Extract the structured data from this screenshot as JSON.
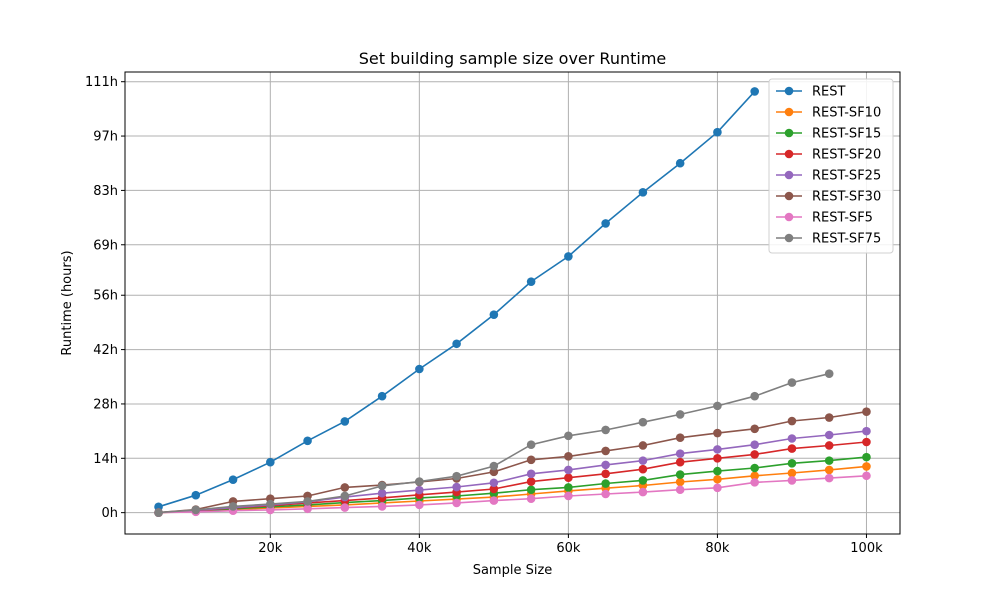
{
  "chart_data": {
    "type": "line",
    "title": "Set building sample size over Runtime",
    "xlabel": "Sample Size",
    "ylabel": "Runtime (hours)",
    "xlim": [
      500,
      104500
    ],
    "ylim": [
      -5.5,
      113.5
    ],
    "x_ticks": [
      {
        "value": 20000,
        "label": "20k"
      },
      {
        "value": 40000,
        "label": "40k"
      },
      {
        "value": 60000,
        "label": "60k"
      },
      {
        "value": 80000,
        "label": "80k"
      },
      {
        "value": 100000,
        "label": "100k"
      }
    ],
    "y_ticks": [
      {
        "value": 0,
        "label": "0h"
      },
      {
        "value": 14,
        "label": "14h"
      },
      {
        "value": 28,
        "label": "28h"
      },
      {
        "value": 42,
        "label": "42h"
      },
      {
        "value": 56,
        "label": "56h"
      },
      {
        "value": 69,
        "label": "69h"
      },
      {
        "value": 83,
        "label": "83h"
      },
      {
        "value": 97,
        "label": "97h"
      },
      {
        "value": 111,
        "label": "111h"
      }
    ],
    "grid": true,
    "legend_position": "top-right",
    "series": [
      {
        "name": "REST",
        "color": "#1f77b4",
        "x": [
          5000,
          10000,
          15000,
          20000,
          25000,
          30000,
          35000,
          40000,
          45000,
          50000,
          55000,
          60000,
          65000,
          70000,
          75000,
          80000,
          85000
        ],
        "y": [
          1.5,
          4.5,
          8.5,
          13,
          18.5,
          23.5,
          30,
          37,
          43.5,
          51,
          59.5,
          66,
          74.5,
          82.5,
          90,
          98,
          108.5
        ]
      },
      {
        "name": "REST-SF10",
        "color": "#ff7f0e",
        "x": [
          5000,
          10000,
          15000,
          20000,
          25000,
          30000,
          35000,
          40000,
          45000,
          50000,
          55000,
          60000,
          65000,
          70000,
          75000,
          80000,
          85000,
          90000,
          95000,
          100000
        ],
        "y": [
          0,
          0.3,
          0.8,
          1.2,
          1.6,
          2,
          2.5,
          3,
          3.5,
          4,
          4.8,
          5.6,
          6.3,
          7,
          7.9,
          8.6,
          9.5,
          10.2,
          11,
          11.9
        ]
      },
      {
        "name": "REST-SF15",
        "color": "#2ca02c",
        "x": [
          5000,
          10000,
          15000,
          20000,
          25000,
          30000,
          35000,
          40000,
          45000,
          50000,
          55000,
          60000,
          65000,
          70000,
          75000,
          80000,
          85000,
          90000,
          95000,
          100000
        ],
        "y": [
          0,
          0.4,
          1,
          1.5,
          2,
          2.6,
          3.1,
          3.8,
          4.3,
          5,
          5.9,
          6.5,
          7.5,
          8.3,
          9.8,
          10.7,
          11.5,
          12.7,
          13.4,
          14.3
        ]
      },
      {
        "name": "REST-SF20",
        "color": "#d62728",
        "x": [
          5000,
          10000,
          15000,
          20000,
          25000,
          30000,
          35000,
          40000,
          45000,
          50000,
          55000,
          60000,
          65000,
          70000,
          75000,
          80000,
          85000,
          90000,
          95000,
          100000
        ],
        "y": [
          0,
          0.5,
          1.2,
          1.8,
          2.5,
          3.1,
          3.8,
          4.6,
          5.3,
          6.1,
          8,
          9,
          10,
          11.2,
          13,
          14,
          15,
          16.5,
          17.3,
          18.2
        ]
      },
      {
        "name": "REST-SF25",
        "color": "#9467bd",
        "x": [
          5000,
          10000,
          15000,
          20000,
          25000,
          30000,
          35000,
          40000,
          45000,
          50000,
          55000,
          60000,
          65000,
          70000,
          75000,
          80000,
          85000,
          90000,
          95000,
          100000
        ],
        "y": [
          0,
          0.6,
          1.3,
          2,
          2.8,
          4,
          5,
          5.8,
          6.6,
          7.7,
          10,
          11,
          12.3,
          13.4,
          15.2,
          16.3,
          17.5,
          19.1,
          20,
          21
        ]
      },
      {
        "name": "REST-SF30",
        "color": "#8c564b",
        "x": [
          5000,
          10000,
          15000,
          20000,
          25000,
          30000,
          35000,
          40000,
          45000,
          50000,
          55000,
          60000,
          65000,
          70000,
          75000,
          80000,
          85000,
          90000,
          95000,
          100000
        ],
        "y": [
          0,
          0.8,
          2.9,
          3.6,
          4.3,
          6.5,
          7.1,
          7.9,
          8.8,
          10.5,
          13.6,
          14.5,
          15.9,
          17.3,
          19.3,
          20.5,
          21.6,
          23.6,
          24.5,
          26
        ]
      },
      {
        "name": "REST-SF5",
        "color": "#e377c2",
        "x": [
          5000,
          10000,
          15000,
          20000,
          25000,
          30000,
          35000,
          40000,
          45000,
          50000,
          55000,
          60000,
          65000,
          70000,
          75000,
          80000,
          85000,
          90000,
          95000,
          100000
        ],
        "y": [
          0,
          0.2,
          0.5,
          0.7,
          1,
          1.3,
          1.6,
          2,
          2.5,
          3.1,
          3.6,
          4.3,
          4.8,
          5.3,
          5.9,
          6.4,
          7.8,
          8.3,
          8.9,
          9.5
        ]
      },
      {
        "name": "REST-SF75",
        "color": "#7f7f7f",
        "x": [
          5000,
          10000,
          15000,
          20000,
          25000,
          30000,
          35000,
          40000,
          45000,
          50000,
          55000,
          60000,
          65000,
          70000,
          75000,
          80000,
          85000,
          90000,
          95000
        ],
        "y": [
          0,
          0.7,
          1.6,
          2.2,
          2.9,
          4.3,
          6.9,
          8,
          9.4,
          12,
          17.5,
          19.8,
          21.3,
          23.3,
          25.3,
          27.5,
          30,
          33.5,
          35.8
        ]
      }
    ]
  }
}
